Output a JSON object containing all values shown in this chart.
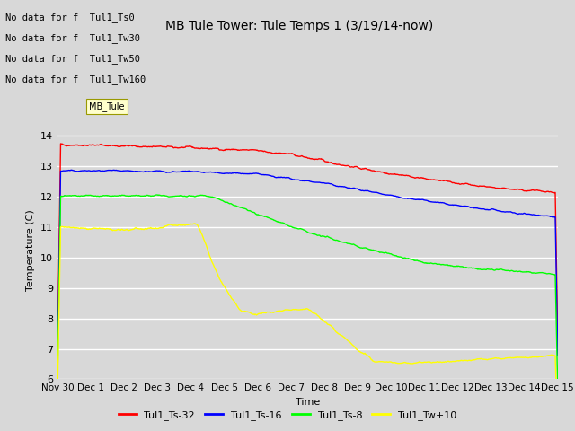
{
  "title": "MB Tule Tower: Tule Temps 1 (3/19/14-now)",
  "xlabel": "Time",
  "ylabel": "Temperature (C)",
  "ylim": [
    6.0,
    14.5
  ],
  "yticks": [
    6.0,
    7.0,
    8.0,
    9.0,
    10.0,
    11.0,
    12.0,
    13.0,
    14.0
  ],
  "background_color": "#d8d8d8",
  "plot_bg_color": "#d8d8d8",
  "grid_color": "#ffffff",
  "series": [
    {
      "label": "Tul1_Ts-32",
      "color": "red"
    },
    {
      "label": "Tul1_Ts-16",
      "color": "blue"
    },
    {
      "label": "Tul1_Ts-8",
      "color": "lime"
    },
    {
      "label": "Tul1_Tw+10",
      "color": "yellow"
    }
  ],
  "no_data_messages": [
    "No data for f  Tul1_Ts0",
    "No data for f  Tul1_Tw30",
    "No data for f  Tul1_Tw50",
    "No data for f  Tul1_Tw160"
  ],
  "tooltip_label": "MB_Tule",
  "xticklabels": [
    "Nov 30",
    "Dec 1",
    "Dec 2",
    "Dec 3",
    "Dec 4",
    "Dec 5",
    "Dec 6",
    "Dec 7",
    "Dec 8",
    "Dec 9",
    "Dec 10",
    "Dec 11",
    "Dec 12",
    "Dec 13",
    "Dec 14",
    "Dec 15"
  ],
  "num_points": 800,
  "title_fontsize": 10,
  "axis_label_fontsize": 8,
  "tick_fontsize": 8,
  "legend_fontsize": 8
}
